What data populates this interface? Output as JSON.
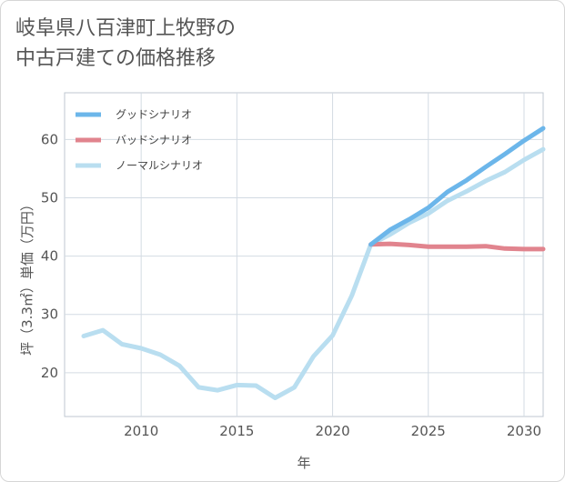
{
  "title_lines": [
    "岐阜県八百津町上牧野の",
    "中古戸建ての価格推移"
  ],
  "chart_data": {
    "type": "line",
    "title": "岐阜県八百津町上牧野の中古戸建ての価格推移",
    "xlabel": "年",
    "ylabel": "坪（3.3㎡）単価（万円）",
    "xlim": [
      2006,
      2031
    ],
    "ylim": [
      12.5,
      68
    ],
    "xticks": [
      2010,
      2015,
      2020,
      2025,
      2030
    ],
    "yticks": [
      20,
      30,
      40,
      50,
      60
    ],
    "grid": true,
    "legend_position": "top-left",
    "series": [
      {
        "name": "グッドシナリオ",
        "color": "#6cb6ea",
        "x": [
          2022,
          2023,
          2024,
          2025,
          2026,
          2027,
          2028,
          2029,
          2030,
          2031
        ],
        "values": [
          42.0,
          44.5,
          46.3,
          48.3,
          51.0,
          53.0,
          55.3,
          57.5,
          59.8,
          61.9
        ]
      },
      {
        "name": "バッドシナリオ",
        "color": "#e1848e",
        "x": [
          2022,
          2023,
          2024,
          2025,
          2026,
          2027,
          2028,
          2029,
          2030,
          2031
        ],
        "values": [
          42.0,
          42.1,
          41.9,
          41.6,
          41.6,
          41.6,
          41.7,
          41.3,
          41.2,
          41.2
        ]
      },
      {
        "name": "ノーマルシナリオ",
        "color": "#b9def0",
        "x": [
          2007,
          2008,
          2009,
          2010,
          2011,
          2012,
          2013,
          2014,
          2015,
          2016,
          2017,
          2018,
          2019,
          2020,
          2021,
          2022,
          2023,
          2024,
          2025,
          2026,
          2027,
          2028,
          2029,
          2030,
          2031
        ],
        "values": [
          26.3,
          27.3,
          24.9,
          24.2,
          23.1,
          21.2,
          17.5,
          17.0,
          17.9,
          17.8,
          15.7,
          17.5,
          22.8,
          26.4,
          33.2,
          42.0,
          43.7,
          45.7,
          47.3,
          49.5,
          51.1,
          52.9,
          54.4,
          56.5,
          58.3
        ]
      }
    ]
  }
}
